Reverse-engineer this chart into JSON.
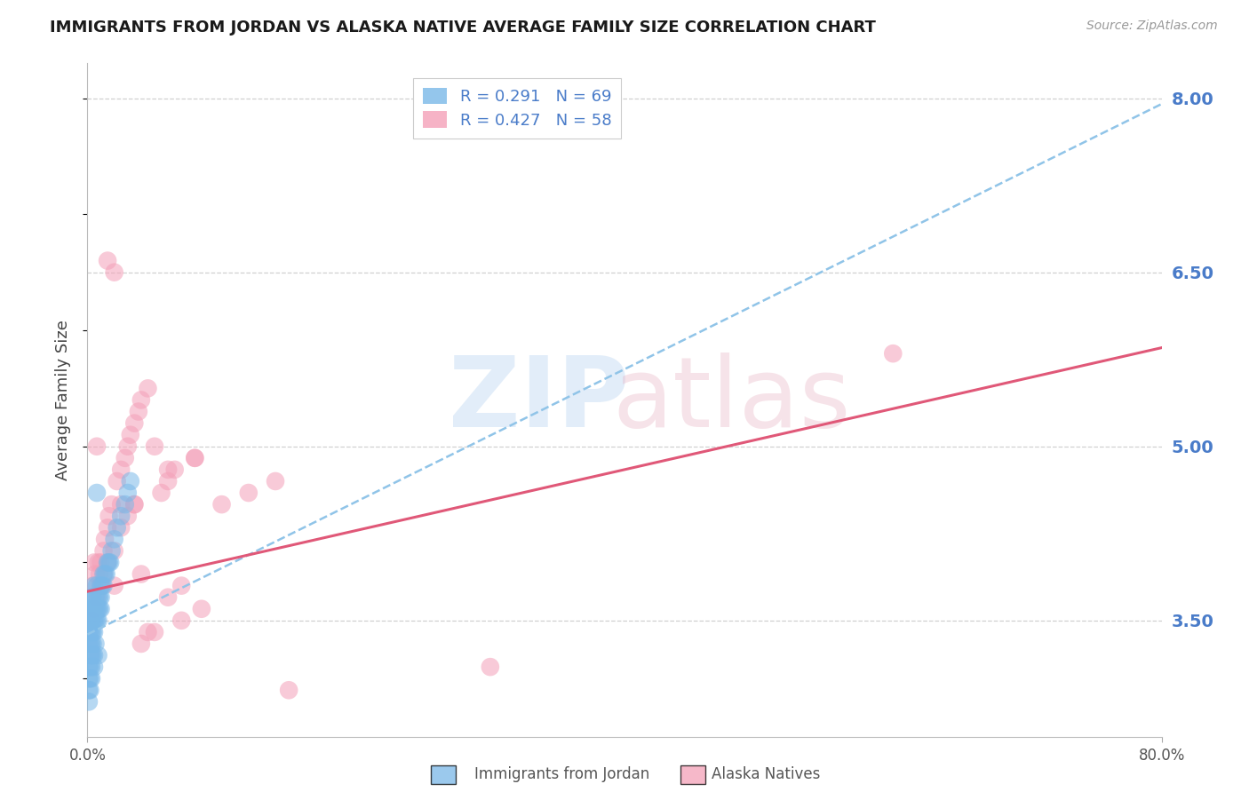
{
  "title": "IMMIGRANTS FROM JORDAN VS ALASKA NATIVE AVERAGE FAMILY SIZE CORRELATION CHART",
  "source": "Source: ZipAtlas.com",
  "ylabel": "Average Family Size",
  "yticks": [
    3.5,
    5.0,
    6.5,
    8.0
  ],
  "xlim": [
    0.0,
    0.8
  ],
  "ylim": [
    2.5,
    8.3
  ],
  "jordan_color": "#7ab8e8",
  "alaska_color": "#f4a0b8",
  "jordan_trend_color": "#90c4e8",
  "alaska_trend_color": "#e05878",
  "grid_color": "#d0d0d0",
  "background_color": "#ffffff",
  "right_axis_color": "#4a7cc9",
  "title_color": "#1a1a1a",
  "jordan_trendline": [
    0.0,
    3.38,
    0.8,
    7.95
  ],
  "alaska_trendline": [
    0.0,
    3.75,
    0.8,
    5.85
  ],
  "jordan_scatter_x": [
    0.001,
    0.001,
    0.001,
    0.001,
    0.002,
    0.002,
    0.002,
    0.002,
    0.002,
    0.003,
    0.003,
    0.003,
    0.003,
    0.003,
    0.003,
    0.004,
    0.004,
    0.004,
    0.004,
    0.004,
    0.005,
    0.005,
    0.005,
    0.005,
    0.006,
    0.006,
    0.006,
    0.007,
    0.007,
    0.007,
    0.008,
    0.008,
    0.008,
    0.009,
    0.009,
    0.01,
    0.01,
    0.01,
    0.011,
    0.012,
    0.012,
    0.013,
    0.014,
    0.015,
    0.016,
    0.017,
    0.018,
    0.02,
    0.022,
    0.025,
    0.028,
    0.03,
    0.032,
    0.001,
    0.001,
    0.001,
    0.001,
    0.002,
    0.002,
    0.002,
    0.003,
    0.003,
    0.004,
    0.005,
    0.005,
    0.006,
    0.007,
    0.008
  ],
  "jordan_scatter_y": [
    3.5,
    3.6,
    3.4,
    3.3,
    3.5,
    3.4,
    3.6,
    3.3,
    3.2,
    3.5,
    3.4,
    3.6,
    3.3,
    3.7,
    3.2,
    3.5,
    3.4,
    3.6,
    3.3,
    3.7,
    3.5,
    3.6,
    3.4,
    3.8,
    3.5,
    3.6,
    3.7,
    3.6,
    3.5,
    3.8,
    3.6,
    3.7,
    3.5,
    3.7,
    3.6,
    3.7,
    3.8,
    3.6,
    3.8,
    3.8,
    3.9,
    3.9,
    3.9,
    4.0,
    4.0,
    4.0,
    4.1,
    4.2,
    4.3,
    4.4,
    4.5,
    4.6,
    4.7,
    3.0,
    2.9,
    2.8,
    3.1,
    3.0,
    3.1,
    2.9,
    3.1,
    3.0,
    3.2,
    3.2,
    3.1,
    3.3,
    4.6,
    3.2
  ],
  "alaska_scatter_x": [
    0.004,
    0.005,
    0.006,
    0.007,
    0.008,
    0.009,
    0.01,
    0.012,
    0.013,
    0.015,
    0.016,
    0.018,
    0.02,
    0.022,
    0.025,
    0.028,
    0.03,
    0.032,
    0.035,
    0.038,
    0.04,
    0.045,
    0.05,
    0.055,
    0.06,
    0.065,
    0.07,
    0.08,
    0.085,
    0.1,
    0.12,
    0.14,
    0.003,
    0.005,
    0.007,
    0.01,
    0.012,
    0.015,
    0.02,
    0.025,
    0.03,
    0.035,
    0.04,
    0.045,
    0.05,
    0.06,
    0.07,
    0.015,
    0.02,
    0.025,
    0.035,
    0.04,
    0.6,
    0.3,
    0.15,
    0.08,
    0.06
  ],
  "alaska_scatter_y": [
    3.8,
    4.0,
    3.9,
    5.0,
    4.0,
    3.9,
    4.0,
    4.1,
    4.2,
    4.3,
    4.4,
    4.5,
    3.8,
    4.7,
    4.8,
    4.9,
    5.0,
    5.1,
    5.2,
    5.3,
    5.4,
    5.5,
    5.0,
    4.6,
    4.7,
    4.8,
    3.5,
    4.9,
    3.6,
    4.5,
    4.6,
    4.7,
    3.5,
    3.6,
    3.7,
    3.8,
    3.9,
    4.0,
    4.1,
    4.3,
    4.4,
    4.5,
    3.3,
    3.4,
    3.4,
    3.7,
    3.8,
    6.6,
    6.5,
    4.5,
    4.5,
    3.9,
    5.8,
    3.1,
    2.9,
    4.9,
    4.8
  ]
}
